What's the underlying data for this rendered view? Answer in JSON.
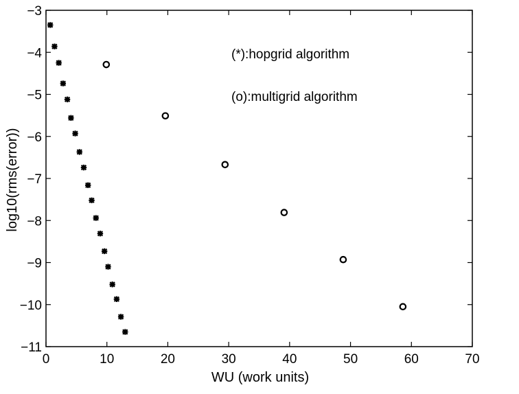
{
  "chart_data": {
    "type": "scatter",
    "title": "",
    "xlabel": "WU (work units)",
    "ylabel": "log10(rms(error))",
    "xlim": [
      0,
      70
    ],
    "ylim": [
      -11,
      -3
    ],
    "xticks": [
      0,
      10,
      20,
      30,
      40,
      50,
      60,
      70
    ],
    "yticks": [
      -3,
      -4,
      -5,
      -6,
      -7,
      -8,
      -9,
      -10,
      -11
    ],
    "xtick_labels": [
      "0",
      "10",
      "20",
      "30",
      "40",
      "50",
      "60",
      "70"
    ],
    "ytick_labels": [
      "−3",
      "−4",
      "−5",
      "−6",
      "−7",
      "−8",
      "−9",
      "−10",
      "−11"
    ],
    "grid": false,
    "annotations": [
      "(*):hopgrid algorithm",
      "(o):multigrid algorithm"
    ],
    "series": [
      {
        "marker": "asterisk",
        "color": "#000000",
        "x": [
          0.7,
          1.4,
          2.1,
          2.8,
          3.5,
          4.1,
          4.8,
          5.5,
          6.2,
          6.9,
          7.5,
          8.2,
          8.9,
          9.6,
          10.2,
          10.9,
          11.6,
          12.3,
          13.0
        ],
        "y": [
          -3.35,
          -3.86,
          -4.25,
          -4.74,
          -5.12,
          -5.56,
          -5.93,
          -6.37,
          -6.74,
          -7.16,
          -7.52,
          -7.94,
          -8.31,
          -8.73,
          -9.1,
          -9.52,
          -9.87,
          -10.29,
          -10.65
        ]
      },
      {
        "marker": "circle",
        "color": "#000000",
        "x": [
          9.9,
          19.6,
          29.4,
          39.1,
          48.8,
          58.6
        ],
        "y": [
          -4.29,
          -5.51,
          -6.67,
          -7.81,
          -8.93,
          -10.05
        ]
      }
    ]
  }
}
